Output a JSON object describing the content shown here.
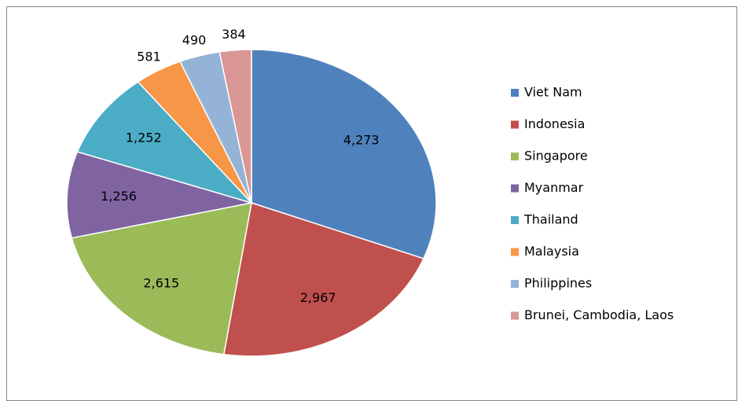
{
  "chart_data": {
    "type": "pie",
    "categories": [
      "Viet Nam",
      "Indonesia",
      "Singapore",
      "Myanmar",
      "Thailand",
      "Malaysia",
      "Philippines",
      "Brunei, Cambodia, Laos"
    ],
    "values": [
      4273,
      2967,
      2615,
      1256,
      1252,
      581,
      490,
      384
    ],
    "value_labels": [
      "4,273",
      "2,967",
      "2,615",
      "1,256",
      "1,252",
      "581",
      "490",
      "384"
    ],
    "colors": [
      "#4F81BD",
      "#C0504D",
      "#9BBB59",
      "#8064A2",
      "#4BACC6",
      "#F79646",
      "#95B3D7",
      "#D99694"
    ],
    "legend": "right"
  }
}
